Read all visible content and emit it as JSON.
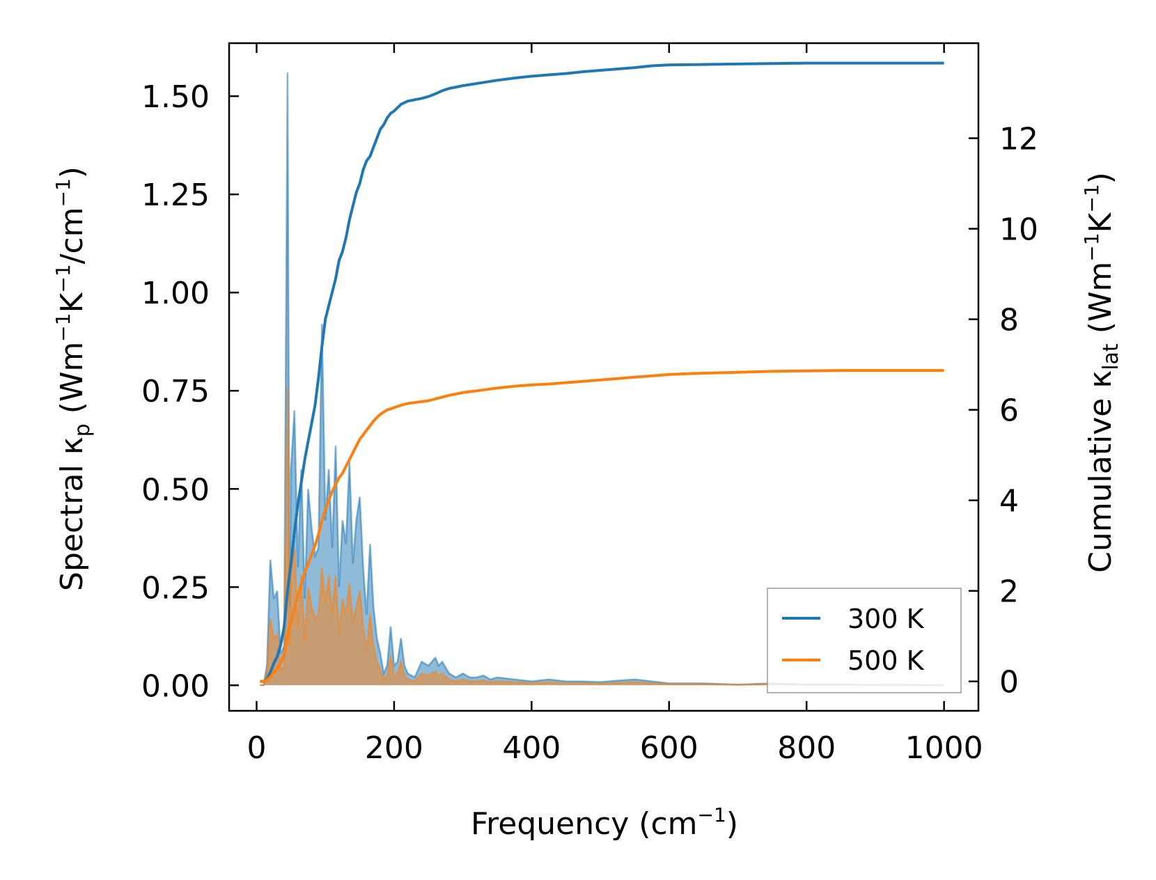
{
  "chart_data": {
    "type": "line",
    "xlabel": "Frequency (cm",
    "xlabel_sup": "−1",
    "xlabel_end": ")",
    "ylabel_left": {
      "pre": "Spectral κ",
      "sub": "p",
      "mid1": " (Wm",
      "sup1": "−1",
      "mid2": "K",
      "sup2": "−1",
      "mid3": "/cm",
      "sup3": "−1",
      "end": ")"
    },
    "ylabel_right": {
      "pre": "Cumulative κ",
      "sub": "lat",
      "mid1": " (Wm",
      "sup1": "−1",
      "mid2": "K",
      "sup2": "−1",
      "end": ")"
    },
    "xlim": [
      -40,
      1050
    ],
    "ylim_left": [
      -0.065,
      1.635
    ],
    "ylim_right": [
      -0.65,
      14.1
    ],
    "xticks": [
      0,
      200,
      400,
      600,
      800,
      1000
    ],
    "xtick_labels": [
      "0",
      "200",
      "400",
      "600",
      "800",
      "1000"
    ],
    "yticks_left": [
      0.0,
      0.25,
      0.5,
      0.75,
      1.0,
      1.25,
      1.5
    ],
    "ytick_labels_left": [
      "0.00",
      "0.25",
      "0.50",
      "0.75",
      "1.00",
      "1.25",
      "1.50"
    ],
    "yticks_right": [
      0,
      2,
      4,
      6,
      8,
      10,
      12
    ],
    "ytick_labels_right": [
      "0",
      "2",
      "4",
      "6",
      "8",
      "10",
      "12"
    ],
    "legend": {
      "position": "lower right",
      "entries": [
        "300 K",
        "500 K"
      ]
    },
    "series": [
      {
        "name": "300 K",
        "color": "#1f77b4",
        "spectral": {
          "x": [
            5,
            10,
            15,
            20,
            25,
            30,
            35,
            40,
            45,
            48,
            50,
            55,
            60,
            65,
            70,
            75,
            80,
            85,
            90,
            95,
            100,
            105,
            110,
            115,
            120,
            125,
            130,
            135,
            140,
            145,
            150,
            155,
            160,
            165,
            170,
            175,
            180,
            185,
            190,
            195,
            200,
            205,
            210,
            215,
            220,
            230,
            240,
            250,
            260,
            265,
            270,
            280,
            290,
            300,
            310,
            320,
            330,
            340,
            350,
            375,
            400,
            425,
            450,
            475,
            500,
            525,
            550,
            575,
            600,
            650,
            700,
            750,
            800,
            850,
            900,
            950,
            1000
          ],
          "y": [
            0,
            0,
            0.05,
            0.32,
            0.22,
            0.24,
            0.08,
            0.1,
            1.56,
            0.2,
            0.55,
            0.7,
            0.3,
            0.55,
            0.22,
            0.5,
            0.4,
            0.33,
            0.35,
            0.92,
            0.42,
            0.55,
            0.35,
            0.61,
            0.25,
            0.42,
            0.36,
            0.57,
            0.31,
            0.42,
            0.48,
            0.3,
            0.18,
            0.36,
            0.2,
            0.12,
            0.08,
            0.03,
            0.05,
            0.15,
            0.05,
            0.06,
            0.12,
            0.05,
            0.03,
            0.02,
            0.06,
            0.05,
            0.07,
            0.05,
            0.06,
            0.03,
            0.02,
            0.03,
            0.02,
            0.02,
            0.025,
            0.015,
            0.02,
            0.015,
            0.01,
            0.015,
            0.01,
            0.01,
            0.008,
            0.012,
            0.015,
            0.01,
            0.005,
            0.005,
            0.002,
            0.005,
            0.002,
            0.002,
            0.001,
            0.001,
            0
          ]
        },
        "cumulative": {
          "x": [
            5,
            10,
            15,
            20,
            25,
            30,
            35,
            40,
            45,
            50,
            55,
            60,
            65,
            70,
            75,
            80,
            85,
            90,
            95,
            100,
            105,
            110,
            115,
            120,
            125,
            130,
            135,
            140,
            145,
            150,
            155,
            160,
            165,
            170,
            175,
            180,
            185,
            190,
            195,
            200,
            210,
            220,
            230,
            240,
            250,
            260,
            270,
            280,
            290,
            300,
            325,
            350,
            375,
            400,
            425,
            450,
            475,
            500,
            525,
            550,
            575,
            600,
            650,
            700,
            750,
            800,
            850,
            900,
            950,
            1000
          ],
          "y": [
            0,
            0,
            0.05,
            0.2,
            0.4,
            0.55,
            0.8,
            1.2,
            2.0,
            2.6,
            3.3,
            3.9,
            4.4,
            4.9,
            5.3,
            5.7,
            6.1,
            6.7,
            7.4,
            8.0,
            8.3,
            8.6,
            8.9,
            9.3,
            9.5,
            9.8,
            10.2,
            10.5,
            10.8,
            11.0,
            11.3,
            11.5,
            11.6,
            11.8,
            12.0,
            12.2,
            12.3,
            12.45,
            12.55,
            12.6,
            12.75,
            12.82,
            12.85,
            12.88,
            12.92,
            12.98,
            13.05,
            13.1,
            13.13,
            13.16,
            13.22,
            13.28,
            13.33,
            13.37,
            13.4,
            13.43,
            13.47,
            13.5,
            13.53,
            13.56,
            13.6,
            13.62,
            13.63,
            13.64,
            13.65,
            13.66,
            13.66,
            13.66,
            13.66,
            13.66
          ]
        }
      },
      {
        "name": "500 K",
        "color": "#ff7f0e",
        "spectral": {
          "x": [
            5,
            10,
            15,
            20,
            25,
            30,
            35,
            40,
            45,
            48,
            50,
            55,
            60,
            65,
            70,
            75,
            80,
            85,
            90,
            95,
            100,
            105,
            110,
            115,
            120,
            125,
            130,
            135,
            140,
            145,
            150,
            155,
            160,
            165,
            170,
            175,
            180,
            185,
            190,
            195,
            200,
            205,
            210,
            215,
            220,
            230,
            240,
            250,
            260,
            265,
            270,
            280,
            290,
            300,
            310,
            320,
            330,
            340,
            350,
            375,
            400,
            425,
            450,
            475,
            500,
            525,
            550,
            575,
            600,
            650,
            700,
            750,
            800,
            850,
            900,
            950,
            1000
          ],
          "y": [
            0,
            0,
            0.03,
            0.17,
            0.12,
            0.13,
            0.04,
            0.05,
            0.76,
            0.1,
            0.28,
            0.35,
            0.15,
            0.28,
            0.11,
            0.25,
            0.2,
            0.17,
            0.18,
            0.3,
            0.21,
            0.28,
            0.18,
            0.28,
            0.13,
            0.22,
            0.18,
            0.26,
            0.16,
            0.2,
            0.24,
            0.15,
            0.09,
            0.18,
            0.1,
            0.06,
            0.04,
            0.015,
            0.025,
            0.075,
            0.025,
            0.03,
            0.06,
            0.025,
            0.015,
            0.01,
            0.03,
            0.025,
            0.035,
            0.025,
            0.03,
            0.015,
            0.01,
            0.015,
            0.01,
            0.01,
            0.012,
            0.008,
            0.01,
            0.008,
            0.005,
            0.008,
            0.005,
            0.005,
            0.004,
            0.006,
            0.008,
            0.005,
            0.003,
            0.003,
            0.001,
            0.003,
            0.001,
            0.001,
            0.0005,
            0.0005,
            0
          ]
        },
        "cumulative": {
          "x": [
            5,
            10,
            15,
            20,
            25,
            30,
            35,
            40,
            45,
            50,
            55,
            60,
            65,
            70,
            75,
            80,
            85,
            90,
            95,
            100,
            105,
            110,
            115,
            120,
            125,
            130,
            135,
            140,
            145,
            150,
            155,
            160,
            165,
            170,
            175,
            180,
            185,
            190,
            195,
            200,
            210,
            220,
            230,
            240,
            250,
            260,
            270,
            280,
            290,
            300,
            325,
            350,
            375,
            400,
            425,
            450,
            475,
            500,
            525,
            550,
            575,
            600,
            650,
            700,
            750,
            800,
            850,
            900,
            950,
            1000
          ],
          "y": [
            0,
            0,
            0.03,
            0.1,
            0.2,
            0.28,
            0.4,
            0.6,
            1.0,
            1.3,
            1.6,
            1.9,
            2.15,
            2.4,
            2.6,
            2.8,
            3.0,
            3.25,
            3.55,
            3.8,
            4.0,
            4.2,
            4.35,
            4.5,
            4.6,
            4.75,
            4.9,
            5.05,
            5.2,
            5.35,
            5.45,
            5.55,
            5.65,
            5.75,
            5.83,
            5.9,
            5.95,
            6.0,
            6.02,
            6.05,
            6.1,
            6.14,
            6.16,
            6.18,
            6.2,
            6.24,
            6.28,
            6.32,
            6.35,
            6.38,
            6.43,
            6.48,
            6.52,
            6.55,
            6.57,
            6.6,
            6.63,
            6.66,
            6.69,
            6.72,
            6.75,
            6.78,
            6.81,
            6.83,
            6.85,
            6.86,
            6.87,
            6.87,
            6.87,
            6.87
          ]
        }
      }
    ]
  }
}
